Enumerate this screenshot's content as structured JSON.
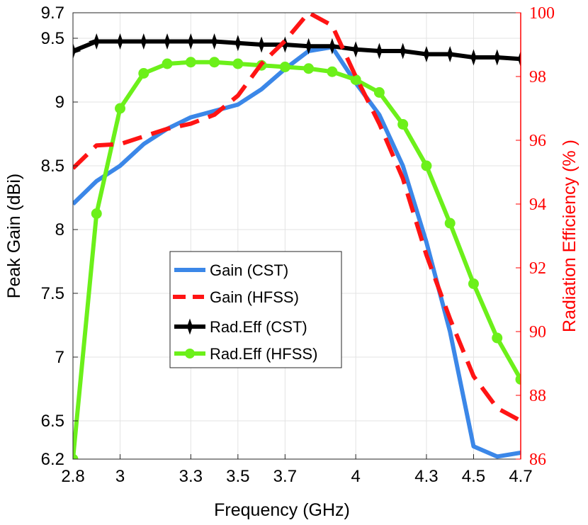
{
  "chart_data": {
    "type": "line",
    "xlabel": "Frequency (GHz)",
    "ylabel": "Peak Gain (dBi)",
    "y2label": "Radiation Efficiency (% )",
    "xlim": [
      2.8,
      4.7
    ],
    "ylim": [
      6.2,
      9.7
    ],
    "y2lim": [
      86,
      100
    ],
    "x_ticks": [
      "2.8",
      "3",
      "3.3",
      "3.5",
      "3.7",
      "4",
      "4.3",
      "4.5",
      "4.7"
    ],
    "y_ticks": [
      "6.2",
      "6.5",
      "7",
      "7.5",
      "8",
      "8.5",
      "9",
      "9.5",
      "9.7"
    ],
    "y2_ticks": [
      "86",
      "88",
      "90",
      "92",
      "94",
      "96",
      "98",
      "100"
    ],
    "colors": {
      "gain_cst": "#3b87e8",
      "gain_hfss": "#ff1414",
      "rad_cst": "#000000",
      "rad_hfss": "#6cf01a",
      "right_axis": "#ff0000"
    },
    "series": [
      {
        "name": "Gain (CST)",
        "axis": "left",
        "style": "solid",
        "marker": "none",
        "x": [
          2.8,
          2.9,
          3.0,
          3.1,
          3.2,
          3.3,
          3.4,
          3.5,
          3.6,
          3.7,
          3.8,
          3.9,
          4.0,
          4.1,
          4.2,
          4.3,
          4.4,
          4.5,
          4.6,
          4.7
        ],
        "values": [
          8.2,
          8.38,
          8.5,
          8.67,
          8.79,
          8.88,
          8.93,
          8.98,
          9.1,
          9.26,
          9.4,
          9.43,
          9.15,
          8.9,
          8.5,
          7.9,
          7.2,
          6.3,
          6.22,
          6.25
        ]
      },
      {
        "name": "Gain (HFSS)",
        "axis": "left",
        "style": "dashed",
        "marker": "none",
        "x": [
          2.8,
          2.9,
          3.0,
          3.1,
          3.2,
          3.3,
          3.4,
          3.5,
          3.6,
          3.7,
          3.8,
          3.9,
          4.0,
          4.1,
          4.2,
          4.3,
          4.4,
          4.5,
          4.6,
          4.7
        ],
        "values": [
          8.48,
          8.66,
          8.67,
          8.73,
          8.79,
          8.83,
          8.9,
          9.05,
          9.3,
          9.48,
          9.7,
          9.6,
          9.2,
          8.83,
          8.4,
          7.8,
          7.3,
          6.85,
          6.6,
          6.5
        ]
      },
      {
        "name": "Rad.Eff (CST)",
        "axis": "right",
        "style": "solid",
        "marker": "star",
        "x": [
          2.8,
          2.9,
          3.0,
          3.1,
          3.2,
          3.3,
          3.4,
          3.5,
          3.6,
          3.7,
          3.8,
          3.9,
          4.0,
          4.1,
          4.2,
          4.3,
          4.4,
          4.5,
          4.6,
          4.7
        ],
        "values": [
          98.8,
          99.1,
          99.1,
          99.1,
          99.1,
          99.1,
          99.1,
          99.05,
          99.0,
          99.0,
          98.95,
          98.95,
          98.85,
          98.8,
          98.8,
          98.7,
          98.7,
          98.6,
          98.6,
          98.55
        ]
      },
      {
        "name": "Rad.Eff (HFSS)",
        "axis": "right",
        "style": "solid",
        "marker": "circle",
        "x": [
          2.8,
          2.9,
          3.0,
          3.1,
          3.2,
          3.3,
          3.4,
          3.5,
          3.6,
          3.7,
          3.8,
          3.9,
          4.0,
          4.1,
          4.2,
          4.3,
          4.4,
          4.5,
          4.6,
          4.7
        ],
        "values": [
          86.0,
          93.7,
          97.0,
          98.1,
          98.4,
          98.45,
          98.45,
          98.4,
          98.35,
          98.3,
          98.25,
          98.15,
          97.9,
          97.5,
          96.5,
          95.2,
          93.4,
          91.5,
          89.8,
          88.5
        ]
      }
    ],
    "legend": {
      "position": "center",
      "entries": [
        "Gain (CST)",
        "Gain (HFSS)",
        "Rad.Eff (CST)",
        "Rad.Eff (HFSS)"
      ]
    }
  }
}
